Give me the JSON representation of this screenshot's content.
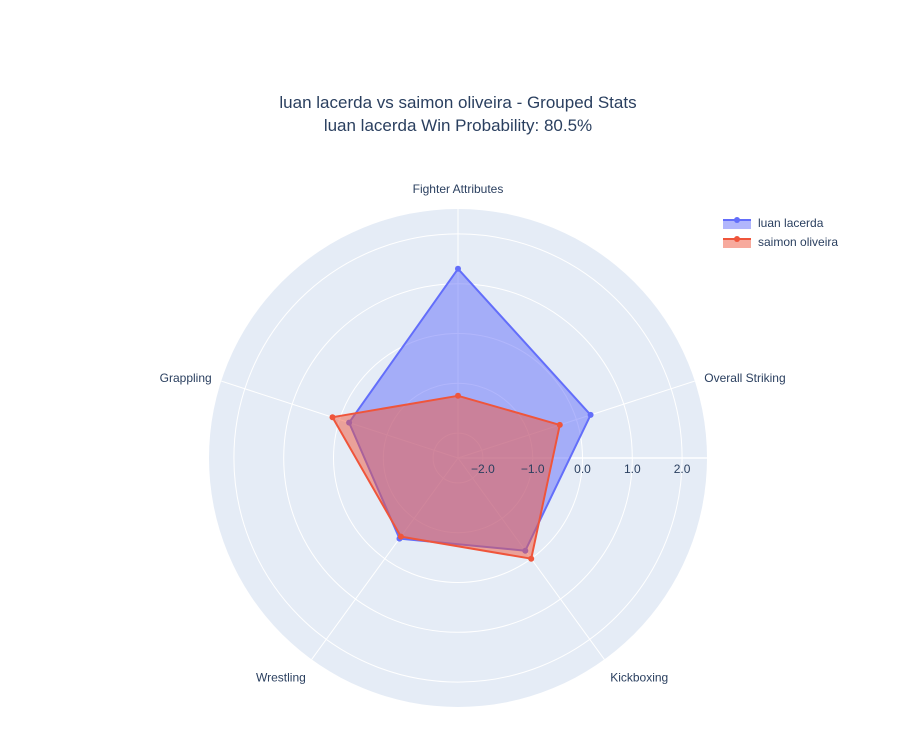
{
  "chart_data": {
    "type": "radar",
    "title_line1": "luan lacerda vs saimon oliveira - Grouped Stats",
    "title_line2": "luan lacerda Win Probability: 80.5%",
    "categories": [
      "Fighter Attributes",
      "Overall Striking",
      "Kickboxing",
      "Wrestling",
      "Grappling"
    ],
    "radial_range": [
      -2.5,
      2.5
    ],
    "radial_ticks": [
      -2.0,
      -1.0,
      0.0,
      1.0,
      2.0
    ],
    "radial_tick_labels": [
      "−2.0",
      "−1.0",
      "0.0",
      "1.0",
      "2.0"
    ],
    "series": [
      {
        "name": "luan lacerda",
        "values": [
          1.3,
          0.3,
          -0.2,
          -0.5,
          -0.2
        ],
        "color": "#636efa",
        "fill": "rgba(99,110,250,0.5)"
      },
      {
        "name": "saimon oliveira",
        "values": [
          -1.25,
          -0.35,
          0.0,
          -0.55,
          0.15
        ],
        "color": "#ef553b",
        "fill": "rgba(239,85,59,0.5)"
      }
    ],
    "legend_position": "top-right",
    "background_color": "#e5ecf6",
    "grid_color": "#ffffff"
  }
}
